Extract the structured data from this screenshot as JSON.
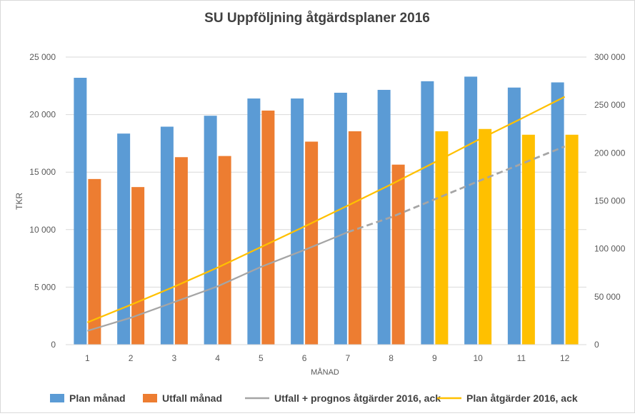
{
  "chart_data": {
    "type": "bar",
    "title": "SU Uppföljning åtgärdsplaner 2016",
    "xlabel": "MÅNAD",
    "ylabel": "TKR",
    "categories": [
      "1",
      "2",
      "3",
      "4",
      "5",
      "6",
      "7",
      "8",
      "9",
      "10",
      "11",
      "12"
    ],
    "ylim": [
      0,
      25000
    ],
    "y_ticks": [
      "0",
      "5 000",
      "10 000",
      "15 000",
      "20 000",
      "25 000"
    ],
    "y2lim": [
      0,
      300000
    ],
    "y2_ticks": [
      "0",
      "50 000",
      "100 000",
      "150 000",
      "200 000",
      "250 000",
      "300 000"
    ],
    "grid": true,
    "legend_position": "bottom",
    "series": [
      {
        "name": "Plan månad",
        "type": "bar",
        "axis": "left",
        "color": "#5b9bd5",
        "values": [
          23200,
          18350,
          18950,
          19900,
          21400,
          21400,
          21900,
          22150,
          22900,
          23300,
          22350,
          22800
        ]
      },
      {
        "name": "Utfall månad",
        "type": "bar",
        "axis": "left",
        "color": "#ed7d31",
        "forecast_color": "#ffc000",
        "forecast_from_index": 8,
        "values": [
          14400,
          13700,
          16300,
          16400,
          20350,
          17650,
          18550,
          15650,
          18550,
          18750,
          18250,
          18250
        ]
      },
      {
        "name": "Utfall + prognos åtgärder 2016, ack",
        "type": "line",
        "axis": "right",
        "color": "#a5a5a5",
        "dashed_from_index": 7,
        "values": [
          14400,
          28100,
          44400,
          60800,
          81150,
          98800,
          117350,
          133000,
          151550,
          170300,
          188550,
          206800
        ]
      },
      {
        "name": "Plan åtgärder 2016, ack",
        "type": "line",
        "axis": "right",
        "color": "#ffc000",
        "values": [
          23200,
          41550,
          60500,
          80400,
          101800,
          123200,
          145100,
          167250,
          190150,
          213450,
          235800,
          258600
        ]
      }
    ]
  }
}
